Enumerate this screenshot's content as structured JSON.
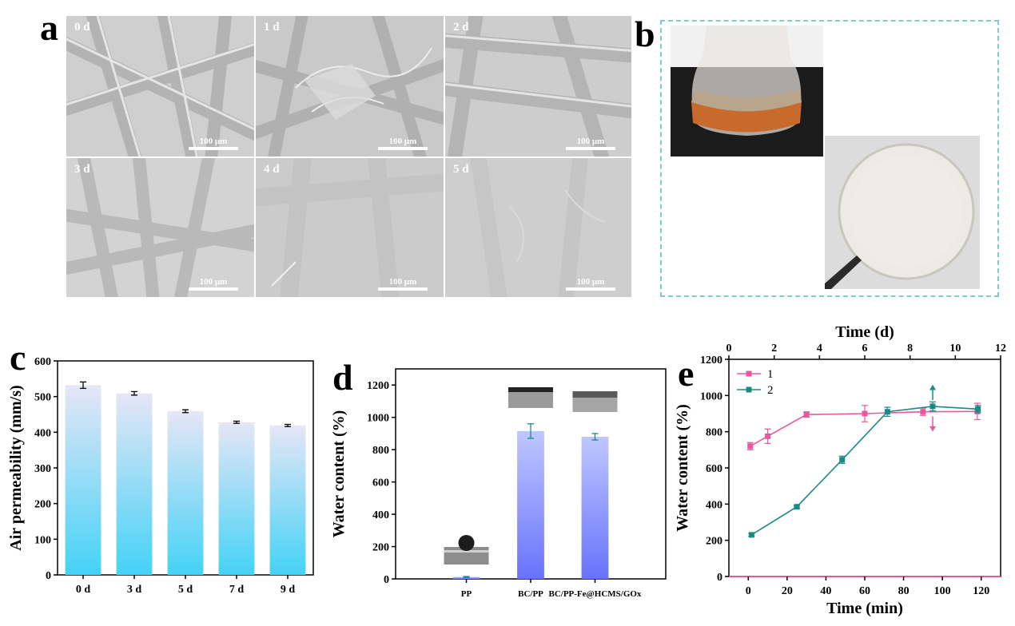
{
  "panel_a": {
    "letter": "a",
    "tiles": [
      {
        "label": "0 d",
        "scale": "100 μm"
      },
      {
        "label": "1 d",
        "scale": "100 μm"
      },
      {
        "label": "2 d",
        "scale": "100 μm"
      },
      {
        "label": "3 d",
        "scale": "100 μm"
      },
      {
        "label": "4 d",
        "scale": "100 μm"
      },
      {
        "label": "5 d",
        "scale": "100 μm"
      }
    ]
  },
  "panel_b": {
    "letter": "b"
  },
  "panel_c": {
    "letter": "c"
  },
  "panel_d": {
    "letter": "d"
  },
  "panel_e": {
    "letter": "e"
  },
  "chart_data": [
    {
      "id": "c",
      "type": "bar",
      "categories": [
        "0 d",
        "3 d",
        "5 d",
        "7 d",
        "9 d"
      ],
      "values": [
        532,
        509,
        459,
        428,
        419
      ],
      "errors": [
        9,
        5,
        4,
        3,
        3
      ],
      "ylabel": "Air permeability (mm/s)",
      "xlabel": "",
      "ylim": [
        0,
        600
      ],
      "yticks": [
        0,
        100,
        200,
        300,
        400,
        500,
        600
      ],
      "bar_gradient": [
        "#e6e6f6",
        "#44d2f6"
      ]
    },
    {
      "id": "d",
      "type": "bar",
      "categories": [
        "PP",
        "BC/PP",
        "BC/PP-Fe@HCMS/GOx"
      ],
      "values": [
        12,
        915,
        880
      ],
      "errors": [
        3,
        45,
        20
      ],
      "ylabel": "Water content (%)",
      "xlabel": "",
      "ylim": [
        0,
        1300
      ],
      "yticks": [
        0,
        200,
        400,
        600,
        800,
        1000,
        1200
      ],
      "bar_gradient": [
        "#bfc7ff",
        "#6873fb"
      ],
      "error_color": "#1a8a85"
    },
    {
      "id": "e",
      "type": "line",
      "xlabel_bottom": "Time (min)",
      "xlabel_top": "Time (d)",
      "ylabel": "Water content (%)",
      "xlim_bottom": [
        -10,
        130
      ],
      "xticks_bottom": [
        0,
        20,
        40,
        60,
        80,
        100,
        120
      ],
      "xlim_top": [
        0,
        12
      ],
      "xticks_top": [
        0,
        2,
        4,
        6,
        8,
        10,
        12
      ],
      "ylim": [
        0,
        1200
      ],
      "yticks": [
        0,
        200,
        400,
        600,
        800,
        1000,
        1200
      ],
      "series": [
        {
          "name": "1",
          "axis": "bottom",
          "color": "#e8589e",
          "x": [
            1,
            10,
            30,
            60,
            90,
            118
          ],
          "y": [
            720,
            775,
            895,
            900,
            910,
            912
          ],
          "err": [
            20,
            40,
            15,
            45,
            20,
            45
          ]
        },
        {
          "name": "2",
          "axis": "top",
          "color": "#1a8a85",
          "x": [
            1,
            3,
            5,
            7,
            9,
            11
          ],
          "y": [
            230,
            385,
            645,
            910,
            940,
            925
          ],
          "err": [
            8,
            8,
            20,
            25,
            25,
            20
          ]
        }
      ]
    }
  ]
}
